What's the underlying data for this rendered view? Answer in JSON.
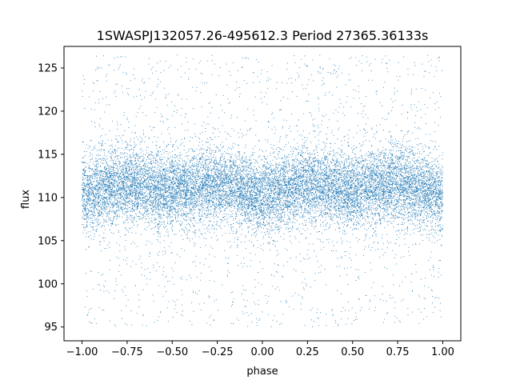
{
  "chart_data": {
    "type": "scatter",
    "title": "1SWASPJ132057.26-495612.3 Period 27365.36133s",
    "xlabel": "phase",
    "ylabel": "flux",
    "xlim": [
      -1.1,
      1.1
    ],
    "ylim": [
      93.4,
      127.5
    ],
    "xticks": [
      -1.0,
      -0.75,
      -0.5,
      -0.25,
      0.0,
      0.25,
      0.5,
      0.75,
      1.0
    ],
    "xtick_labels": [
      "−1.00",
      "−0.75",
      "−0.50",
      "−0.25",
      "0.00",
      "0.25",
      "0.50",
      "0.75",
      "1.00"
    ],
    "yticks": [
      95,
      100,
      105,
      110,
      115,
      120,
      125
    ],
    "ytick_labels": [
      "95",
      "100",
      "105",
      "110",
      "115",
      "120",
      "125"
    ],
    "grid": false,
    "series": [
      {
        "color": "#1f77b4",
        "marker_size": "tiny",
        "phase_range": [
          -1.0,
          1.0
        ],
        "flux_range": [
          95,
          126.5
        ],
        "profile": {
          "phase": [
            -1.0,
            -0.75,
            -0.5,
            -0.25,
            0.0,
            0.25,
            0.5,
            0.75,
            1.0
          ],
          "flux_center": [
            110.3,
            111.5,
            110.8,
            111.5,
            110.3,
            111.5,
            110.8,
            111.5,
            110.3
          ],
          "flux_spread": 2.2
        }
      }
    ]
  }
}
